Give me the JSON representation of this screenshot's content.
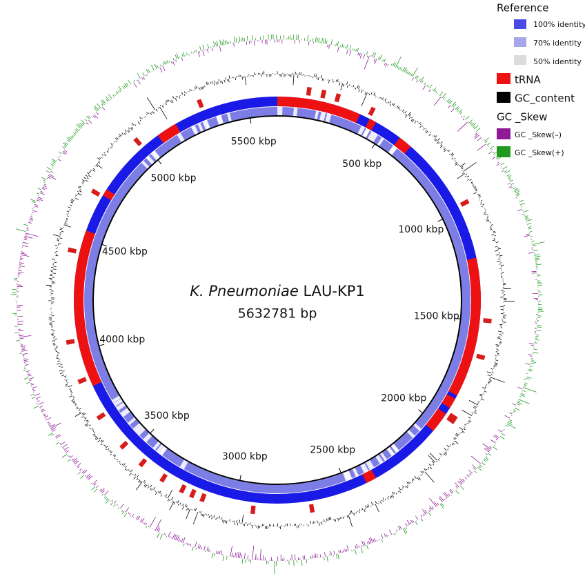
{
  "title": {
    "organism": "K. Pneumoniae",
    "strain": "LAU-KP1",
    "length": "5632781 bp"
  },
  "scale_labels": [
    "500 kbp",
    "1000 kbp",
    "1500 kbp",
    "2000 kbp",
    "2500 kbp",
    "3000 kbp",
    "3500 kbp",
    "4000 kbp",
    "4500 kbp",
    "5000 kbp",
    "5500 kbp"
  ],
  "legend": {
    "reference": {
      "title": "Reference",
      "items": [
        "100% identity",
        "70% identity",
        "50% identity"
      ]
    },
    "trna": "tRNA",
    "gc_content": "GC_content",
    "gc_skew": {
      "title": "GC _Skew",
      "items": [
        "GC _Skew(–)",
        "GC _Skew(+)"
      ]
    }
  }
}
